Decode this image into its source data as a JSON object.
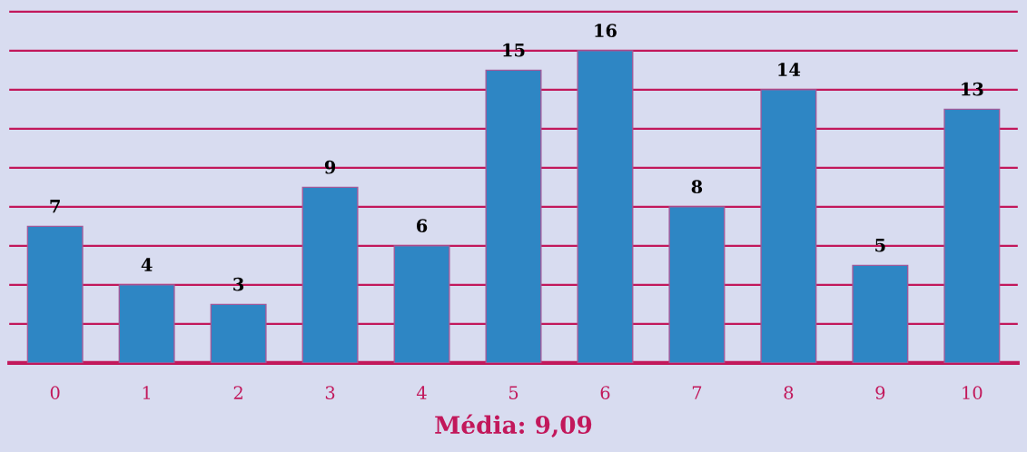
{
  "chart_data": {
    "type": "bar",
    "xlabel": "Média: 9,09",
    "categories": [
      "0",
      "1",
      "2",
      "3",
      "4",
      "5",
      "6",
      "7",
      "8",
      "9",
      "10"
    ],
    "values": [
      7,
      4,
      3,
      9,
      6,
      15,
      16,
      8,
      14,
      5,
      13
    ],
    "color": "#2e86c4",
    "ylim": [
      0,
      18.6
    ],
    "yticks": [
      {
        "value": 0,
        "label": null
      },
      {
        "value": 2,
        "label": null
      },
      {
        "value": 4,
        "label": null
      },
      {
        "value": 6,
        "label": null
      },
      {
        "value": 8,
        "label": null
      },
      {
        "value": 10,
        "label": null
      },
      {
        "value": 12,
        "label": null
      },
      {
        "value": 14,
        "label": null
      },
      {
        "value": 16,
        "label": null
      },
      {
        "value": 18,
        "label": null
      }
    ],
    "grid": "y",
    "tick_labels": "x",
    "data_labels": true
  }
}
